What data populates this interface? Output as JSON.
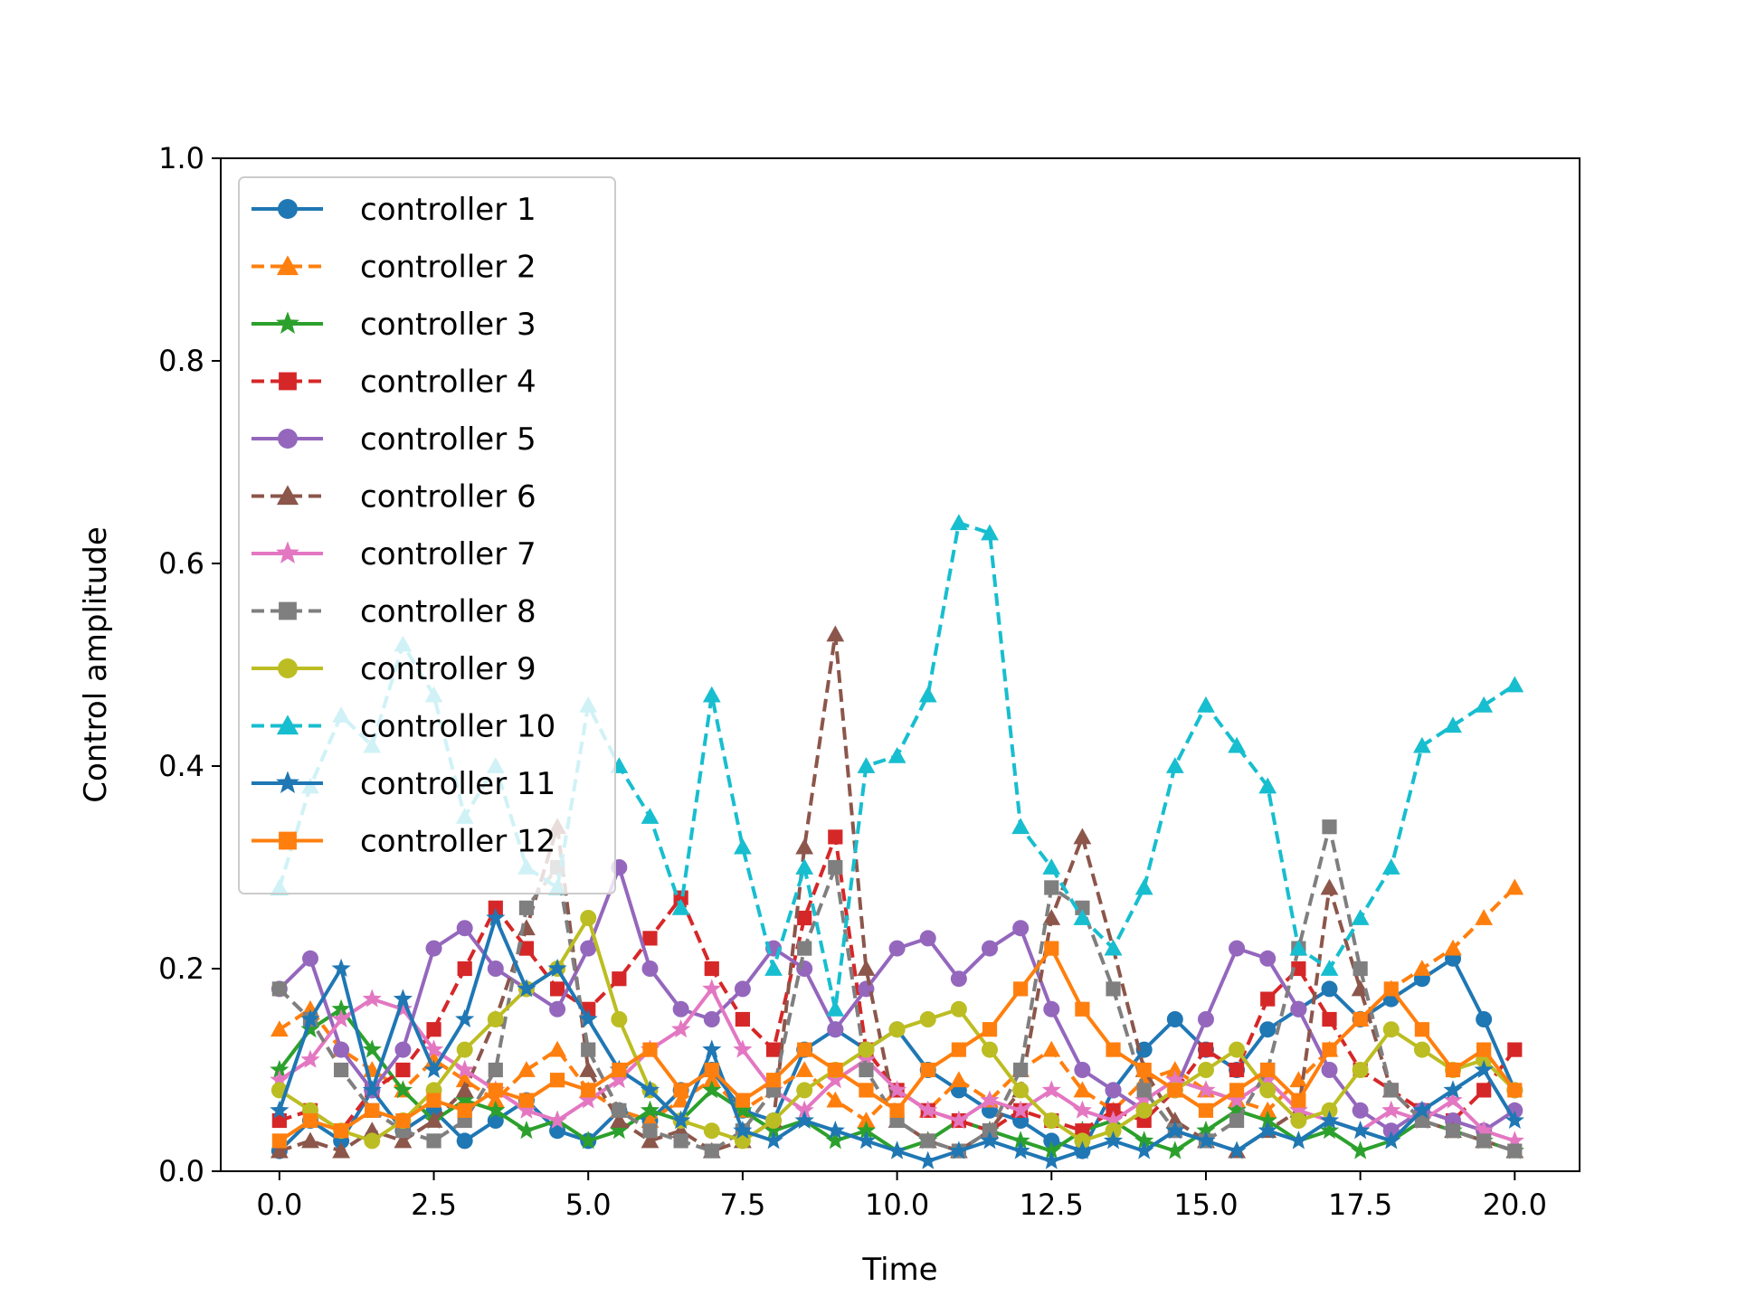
{
  "chart_data": {
    "type": "line",
    "title": "",
    "xlabel": "Time",
    "ylabel": "Control amplitude",
    "xlim": [
      -0.95,
      21.05
    ],
    "ylim": [
      0.0,
      1.0
    ],
    "grid": false,
    "legend_placement": "upper-left",
    "xticks": [
      0.0,
      2.5,
      5.0,
      7.5,
      10.0,
      12.5,
      15.0,
      17.5,
      20.0
    ],
    "xtick_labels": [
      "0.0",
      "2.5",
      "5.0",
      "7.5",
      "10.0",
      "12.5",
      "15.0",
      "17.5",
      "20.0"
    ],
    "yticks": [
      0.0,
      0.2,
      0.4,
      0.6,
      0.8,
      1.0
    ],
    "ytick_labels": [
      "0.0",
      "0.2",
      "0.4",
      "0.6",
      "0.8",
      "1.0"
    ],
    "x": [
      0,
      0.5,
      1,
      1.5,
      2,
      2.5,
      3,
      3.5,
      4,
      4.5,
      5,
      5.5,
      6,
      6.5,
      7,
      7.5,
      8,
      8.5,
      9,
      9.5,
      10,
      10.5,
      11,
      11.5,
      12,
      12.5,
      13,
      13.5,
      14,
      14.5,
      15,
      15.5,
      16,
      16.5,
      17,
      17.5,
      18,
      18.5,
      19,
      19.5,
      20
    ],
    "series": [
      {
        "name": "controller 1",
        "color": "#1f77b4",
        "marker": "circle",
        "dash": "solid",
        "values": [
          0.02,
          0.05,
          0.03,
          0.08,
          0.04,
          0.06,
          0.03,
          0.05,
          0.07,
          0.04,
          0.03,
          0.06,
          0.05,
          0.08,
          0.1,
          0.06,
          0.05,
          0.12,
          0.14,
          0.12,
          0.14,
          0.1,
          0.08,
          0.06,
          0.05,
          0.03,
          0.02,
          0.08,
          0.12,
          0.15,
          0.12,
          0.1,
          0.14,
          0.16,
          0.18,
          0.15,
          0.17,
          0.19,
          0.21,
          0.15,
          0.08
        ]
      },
      {
        "name": "controller 2",
        "color": "#ff7f0e",
        "marker": "triangle",
        "dash": "dashed",
        "values": [
          0.14,
          0.16,
          0.12,
          0.1,
          0.08,
          0.11,
          0.09,
          0.07,
          0.1,
          0.12,
          0.08,
          0.06,
          0.05,
          0.07,
          0.09,
          0.06,
          0.08,
          0.1,
          0.07,
          0.05,
          0.08,
          0.06,
          0.09,
          0.07,
          0.1,
          0.12,
          0.08,
          0.06,
          0.09,
          0.1,
          0.08,
          0.07,
          0.06,
          0.09,
          0.12,
          0.15,
          0.18,
          0.2,
          0.22,
          0.25,
          0.28
        ]
      },
      {
        "name": "controller 3",
        "color": "#2ca02c",
        "marker": "star",
        "dash": "solid",
        "values": [
          0.1,
          0.14,
          0.16,
          0.12,
          0.08,
          0.05,
          0.07,
          0.06,
          0.04,
          0.05,
          0.03,
          0.04,
          0.06,
          0.05,
          0.08,
          0.06,
          0.04,
          0.05,
          0.03,
          0.04,
          0.02,
          0.03,
          0.05,
          0.04,
          0.03,
          0.02,
          0.04,
          0.05,
          0.03,
          0.02,
          0.04,
          0.06,
          0.05,
          0.03,
          0.04,
          0.02,
          0.03,
          0.05,
          0.04,
          0.03,
          0.02
        ]
      },
      {
        "name": "controller 4",
        "color": "#d62728",
        "marker": "square",
        "dash": "dashed",
        "values": [
          0.05,
          0.06,
          0.04,
          0.08,
          0.1,
          0.14,
          0.2,
          0.26,
          0.22,
          0.18,
          0.16,
          0.19,
          0.23,
          0.27,
          0.2,
          0.15,
          0.12,
          0.25,
          0.33,
          0.12,
          0.08,
          0.06,
          0.05,
          0.04,
          0.06,
          0.05,
          0.04,
          0.06,
          0.05,
          0.08,
          0.12,
          0.1,
          0.17,
          0.2,
          0.15,
          0.1,
          0.08,
          0.06,
          0.05,
          0.08,
          0.12
        ]
      },
      {
        "name": "controller 5",
        "color": "#9467bd",
        "marker": "circle",
        "dash": "solid",
        "values": [
          0.18,
          0.21,
          0.12,
          0.08,
          0.12,
          0.22,
          0.24,
          0.2,
          0.18,
          0.16,
          0.22,
          0.3,
          0.2,
          0.16,
          0.15,
          0.18,
          0.22,
          0.2,
          0.14,
          0.18,
          0.22,
          0.23,
          0.19,
          0.22,
          0.24,
          0.16,
          0.1,
          0.08,
          0.06,
          0.08,
          0.15,
          0.22,
          0.21,
          0.16,
          0.1,
          0.06,
          0.04,
          0.06,
          0.05,
          0.04,
          0.06
        ]
      },
      {
        "name": "controller 6",
        "color": "#8c564b",
        "marker": "triangle",
        "dash": "dashed",
        "values": [
          0.02,
          0.03,
          0.02,
          0.04,
          0.03,
          0.05,
          0.08,
          0.15,
          0.24,
          0.34,
          0.1,
          0.05,
          0.03,
          0.04,
          0.02,
          0.03,
          0.05,
          0.32,
          0.53,
          0.2,
          0.05,
          0.03,
          0.02,
          0.04,
          0.08,
          0.25,
          0.33,
          0.22,
          0.1,
          0.05,
          0.03,
          0.02,
          0.04,
          0.06,
          0.28,
          0.18,
          0.08,
          0.05,
          0.04,
          0.03,
          0.02
        ]
      },
      {
        "name": "controller 7",
        "color": "#e377c2",
        "marker": "star",
        "dash": "solid",
        "values": [
          0.09,
          0.11,
          0.15,
          0.17,
          0.16,
          0.12,
          0.1,
          0.08,
          0.06,
          0.05,
          0.07,
          0.09,
          0.12,
          0.14,
          0.18,
          0.12,
          0.08,
          0.06,
          0.09,
          0.11,
          0.08,
          0.06,
          0.05,
          0.07,
          0.06,
          0.08,
          0.06,
          0.05,
          0.07,
          0.09,
          0.08,
          0.07,
          0.09,
          0.06,
          0.05,
          0.04,
          0.06,
          0.05,
          0.07,
          0.04,
          0.03
        ]
      },
      {
        "name": "controller 8",
        "color": "#7f7f7f",
        "marker": "square",
        "dash": "dashed",
        "values": [
          0.18,
          0.15,
          0.1,
          0.06,
          0.04,
          0.03,
          0.05,
          0.1,
          0.26,
          0.3,
          0.12,
          0.06,
          0.04,
          0.03,
          0.02,
          0.04,
          0.08,
          0.22,
          0.3,
          0.1,
          0.05,
          0.03,
          0.02,
          0.04,
          0.1,
          0.28,
          0.26,
          0.18,
          0.08,
          0.04,
          0.03,
          0.05,
          0.1,
          0.22,
          0.34,
          0.2,
          0.08,
          0.05,
          0.04,
          0.03,
          0.02
        ]
      },
      {
        "name": "controller 9",
        "color": "#bcbd22",
        "marker": "circle",
        "dash": "solid",
        "values": [
          0.08,
          0.06,
          0.04,
          0.03,
          0.05,
          0.08,
          0.12,
          0.15,
          0.18,
          0.2,
          0.25,
          0.15,
          0.08,
          0.05,
          0.04,
          0.03,
          0.05,
          0.08,
          0.1,
          0.12,
          0.14,
          0.15,
          0.16,
          0.12,
          0.08,
          0.05,
          0.03,
          0.04,
          0.06,
          0.08,
          0.1,
          0.12,
          0.08,
          0.05,
          0.06,
          0.1,
          0.14,
          0.12,
          0.1,
          0.11,
          0.08
        ]
      },
      {
        "name": "controller 10",
        "color": "#17becf",
        "marker": "triangle",
        "dash": "dashed",
        "values": [
          0.28,
          0.38,
          0.45,
          0.42,
          0.52,
          0.47,
          0.35,
          0.4,
          0.3,
          0.28,
          0.46,
          0.4,
          0.35,
          0.26,
          0.47,
          0.32,
          0.2,
          0.3,
          0.16,
          0.4,
          0.41,
          0.47,
          0.64,
          0.63,
          0.34,
          0.3,
          0.25,
          0.22,
          0.28,
          0.4,
          0.46,
          0.42,
          0.38,
          0.22,
          0.2,
          0.25,
          0.3,
          0.42,
          0.44,
          0.46,
          0.48
        ]
      },
      {
        "name": "controller 11",
        "color": "#1f77b4",
        "marker": "star",
        "dash": "solid",
        "values": [
          0.06,
          0.15,
          0.2,
          0.08,
          0.17,
          0.1,
          0.15,
          0.25,
          0.18,
          0.2,
          0.15,
          0.1,
          0.08,
          0.05,
          0.12,
          0.04,
          0.03,
          0.05,
          0.04,
          0.03,
          0.02,
          0.01,
          0.02,
          0.03,
          0.02,
          0.01,
          0.02,
          0.03,
          0.02,
          0.04,
          0.03,
          0.02,
          0.04,
          0.03,
          0.05,
          0.04,
          0.03,
          0.06,
          0.08,
          0.1,
          0.05
        ]
      },
      {
        "name": "controller 12",
        "color": "#ff7f0e",
        "marker": "square",
        "dash": "solid",
        "values": [
          0.03,
          0.05,
          0.04,
          0.06,
          0.05,
          0.07,
          0.06,
          0.08,
          0.07,
          0.09,
          0.08,
          0.1,
          0.12,
          0.08,
          0.1,
          0.07,
          0.09,
          0.12,
          0.1,
          0.08,
          0.06,
          0.1,
          0.12,
          0.14,
          0.18,
          0.22,
          0.16,
          0.12,
          0.1,
          0.08,
          0.06,
          0.08,
          0.1,
          0.07,
          0.12,
          0.15,
          0.18,
          0.14,
          0.1,
          0.12,
          0.08
        ]
      }
    ]
  }
}
